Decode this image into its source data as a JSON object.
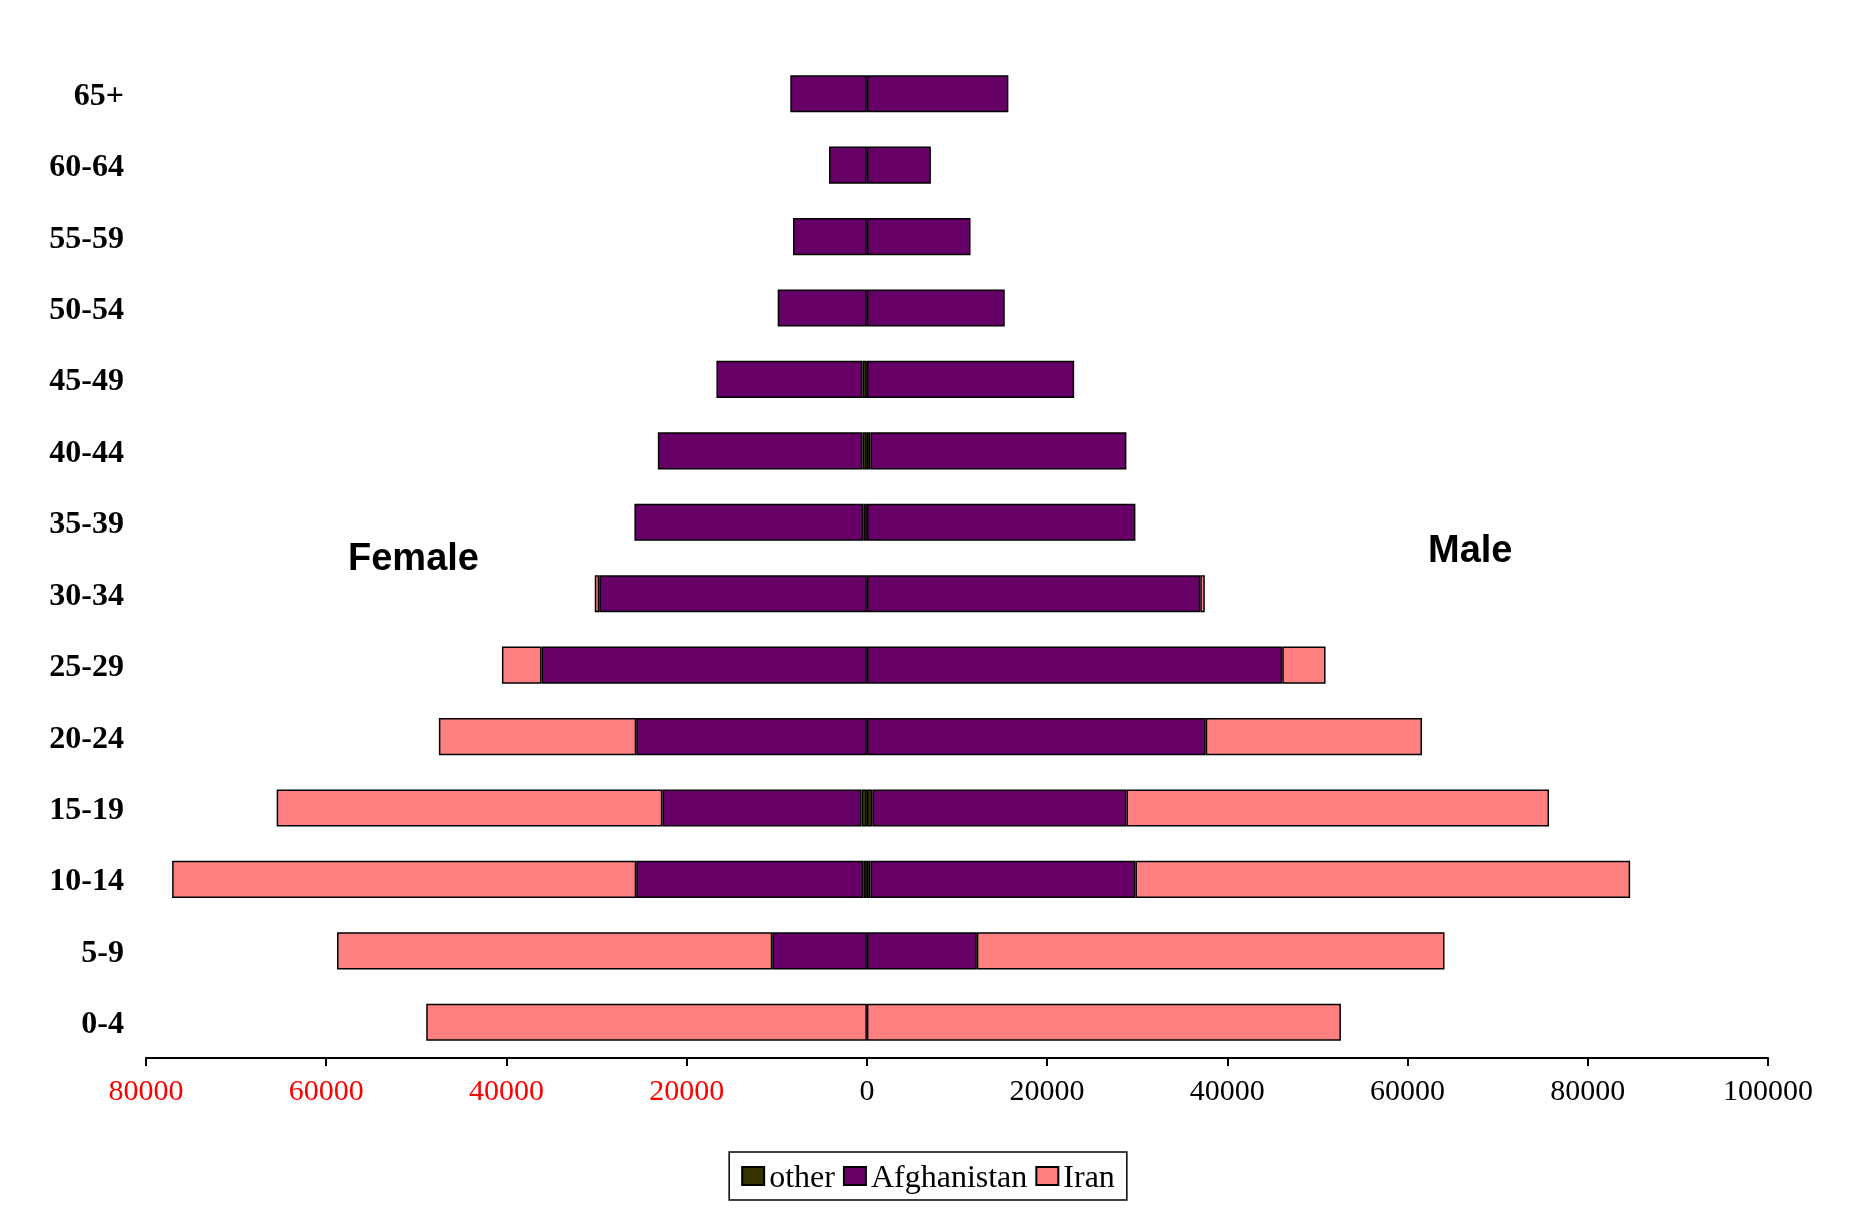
{
  "chart_data": {
    "type": "bar",
    "orientation": "horizontal",
    "stacked": true,
    "categories": [
      "65+",
      "60-64",
      "55-59",
      "50-54",
      "45-49",
      "40-44",
      "35-39",
      "30-34",
      "25-29",
      "20-24",
      "15-19",
      "10-14",
      "5-9",
      "0-4"
    ],
    "series": [
      {
        "name": "other",
        "color": "#333300",
        "values": [
          null,
          null,
          null,
          null,
          -500,
          -500,
          -400,
          null,
          null,
          null,
          -600,
          -400,
          null,
          null
        ]
      },
      {
        "name": "Afghanistan",
        "color": "#660066",
        "values": [
          -8500,
          -4200,
          -8200,
          -9900,
          -16200,
          -22700,
          -25400,
          -29700,
          -36100,
          -25600,
          -22100,
          -25200,
          -10500,
          null
        ]
      },
      {
        "name": "Iran",
        "color": "#ff8080",
        "values": [
          null,
          null,
          null,
          null,
          null,
          null,
          null,
          -500,
          -4400,
          -21900,
          -42800,
          -51500,
          -48300,
          -48900
        ]
      },
      {
        "color": "#333300",
        "values": [
          null,
          null,
          null,
          null,
          null,
          400,
          null,
          null,
          null,
          null,
          600,
          400,
          null,
          null
        ]
      },
      {
        "color": "#660066",
        "values": [
          15700,
          7100,
          11500,
          15300,
          23000,
          28400,
          29800,
          37000,
          46100,
          37600,
          28200,
          29400,
          12200,
          null
        ]
      },
      {
        "color": "#ff8080",
        "values": [
          null,
          null,
          null,
          null,
          null,
          null,
          null,
          500,
          4800,
          24000,
          46900,
          54900,
          51900,
          52600
        ]
      }
    ],
    "xlim": [
      -80000,
      100000
    ],
    "xticks": [
      {
        "value": -80000,
        "label": "80000"
      },
      {
        "value": -60000,
        "label": "60000"
      },
      {
        "value": -40000,
        "label": "40000"
      },
      {
        "value": -20000,
        "label": "20000"
      },
      0,
      20000,
      40000,
      60000,
      80000,
      100000
    ],
    "annotations": [
      "Female",
      "Male"
    ],
    "legend": "bottom",
    "grid": false
  }
}
